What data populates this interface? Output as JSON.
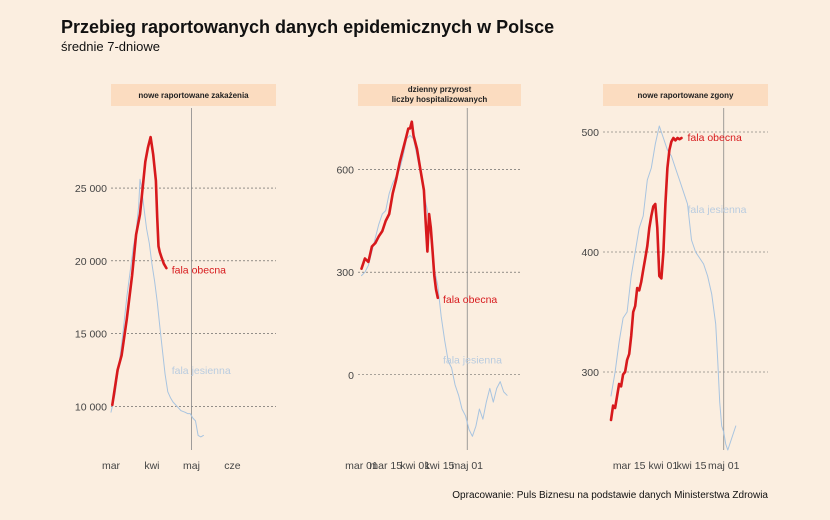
{
  "title": "Przebieg raportowanych danych epidemicznych w Polsce",
  "subtitle": "średnie 7-dniowe",
  "caption": "Opracowanie: Puls Biznesu na podstawie danych Ministerstwa Zdrowia",
  "colors": {
    "background": "#fbeee0",
    "strip": "#fbdcc0",
    "current": "#d7191c",
    "previous": "#a8c4e0",
    "grid": "#555555",
    "vline": "#888888"
  },
  "chart_data": [
    {
      "type": "line",
      "panel_title": [
        "nowe raportowane zakażenia"
      ],
      "xlim": [
        0,
        125
      ],
      "ylim": [
        7000,
        30500
      ],
      "x_ticks": [
        {
          "x": 0,
          "label": "mar"
        },
        {
          "x": 31,
          "label": "kwi"
        },
        {
          "x": 61,
          "label": "maj"
        },
        {
          "x": 92,
          "label": "cze"
        }
      ],
      "y_ticks": [
        {
          "y": 10000,
          "label": "10 000"
        },
        {
          "y": 15000,
          "label": "15 000"
        },
        {
          "y": 20000,
          "label": "20 000"
        },
        {
          "y": 25000,
          "label": "25 000"
        }
      ],
      "vline_x": 61,
      "series": [
        {
          "name": "fala obecna",
          "role": "current",
          "x": [
            1,
            5,
            8,
            12,
            16,
            19,
            22,
            26,
            28,
            30,
            32,
            34,
            35,
            36,
            37,
            38,
            40,
            42
          ],
          "y": [
            10100,
            12500,
            13500,
            16000,
            19000,
            21800,
            23200,
            26800,
            27800,
            28500,
            27300,
            25500,
            23000,
            21000,
            20600,
            20300,
            19800,
            19500
          ],
          "label_x": 46,
          "label_y": 19400
        },
        {
          "name": "fala jesienna",
          "role": "previous",
          "x": [
            0,
            3,
            6,
            9,
            12,
            15,
            17,
            19,
            21,
            22,
            23,
            25,
            27,
            29,
            31,
            33,
            35,
            37,
            39,
            41,
            43,
            45,
            47,
            50,
            53,
            56,
            58,
            60,
            62,
            64,
            66,
            68,
            70
          ],
          "y": [
            9600,
            10800,
            12800,
            15000,
            17500,
            19600,
            21000,
            22000,
            23800,
            25600,
            25100,
            23600,
            22200,
            21200,
            19800,
            18600,
            17200,
            15500,
            13800,
            12200,
            11000,
            10600,
            10300,
            10000,
            9700,
            9600,
            9500,
            9500,
            9200,
            9000,
            8000,
            7900,
            8000
          ],
          "label_x": 46,
          "label_y": 12500
        }
      ]
    },
    {
      "type": "line",
      "panel_title": [
        "dzienny przyrost",
        "liczby hospitalizowanych"
      ],
      "xlim": [
        -2,
        92
      ],
      "ylim": [
        -220,
        780
      ],
      "x_ticks": [
        {
          "x": 0,
          "label": "mar 01"
        },
        {
          "x": 14,
          "label": "mar 15"
        },
        {
          "x": 31,
          "label": "kwi 01"
        },
        {
          "x": 45,
          "label": "kwi 15"
        },
        {
          "x": 61,
          "label": "maj 01"
        }
      ],
      "y_ticks": [
        {
          "y": 0,
          "label": "0"
        },
        {
          "y": 300,
          "label": "300"
        },
        {
          "y": 600,
          "label": "600"
        }
      ],
      "vline_x": 61,
      "series": [
        {
          "name": "fala obecna",
          "role": "current",
          "x": [
            0,
            2,
            4,
            6,
            8,
            10,
            12,
            14,
            16,
            18,
            20,
            22,
            24,
            26,
            27,
            28,
            29,
            30,
            32,
            34,
            36,
            37,
            38,
            39,
            40,
            41,
            42,
            43,
            44
          ],
          "y": [
            310,
            340,
            330,
            375,
            385,
            405,
            420,
            450,
            470,
            530,
            570,
            620,
            660,
            700,
            720,
            720,
            740,
            700,
            660,
            600,
            540,
            450,
            360,
            470,
            430,
            360,
            290,
            250,
            225
          ],
          "label_x": 47,
          "label_y": 222
        },
        {
          "name": "fala jesienna",
          "role": "previous",
          "x": [
            0,
            2,
            4,
            6,
            8,
            10,
            12,
            14,
            16,
            18,
            20,
            22,
            24,
            26,
            28,
            30,
            32,
            34,
            36,
            38,
            40,
            42,
            44,
            46,
            48,
            50,
            52,
            54,
            56,
            58,
            60,
            62,
            64,
            66,
            68,
            70,
            72,
            74,
            76,
            78,
            80,
            82,
            84
          ],
          "y": [
            290,
            300,
            320,
            360,
            400,
            440,
            470,
            480,
            530,
            560,
            580,
            600,
            640,
            690,
            700,
            690,
            640,
            590,
            530,
            480,
            400,
            310,
            260,
            170,
            100,
            40,
            20,
            -30,
            -60,
            -100,
            -120,
            -160,
            -180,
            -150,
            -100,
            -130,
            -80,
            -40,
            -80,
            -40,
            -20,
            -50,
            -60
          ],
          "label_x": 47,
          "label_y": 45
        }
      ]
    },
    {
      "type": "line",
      "panel_title": [
        "nowe raportowane zgony"
      ],
      "xlim": [
        -4,
        78
      ],
      "ylim": [
        235,
        520
      ],
      "x_ticks": [
        {
          "x": 9,
          "label": "mar 15"
        },
        {
          "x": 26,
          "label": "kwi 01"
        },
        {
          "x": 40,
          "label": "kwi 15"
        },
        {
          "x": 56,
          "label": "maj 01"
        }
      ],
      "y_ticks": [
        {
          "y": 300,
          "label": "300"
        },
        {
          "y": 400,
          "label": "400"
        },
        {
          "y": 500,
          "label": "500"
        }
      ],
      "vline_x": 56,
      "series": [
        {
          "name": "fala obecna",
          "role": "current",
          "x": [
            0,
            1,
            2,
            3,
            4,
            5,
            6,
            7,
            8,
            9,
            10,
            11,
            12,
            13,
            14,
            15,
            16,
            17,
            18,
            19,
            20,
            21,
            22,
            23,
            24,
            25,
            26,
            27,
            28,
            29,
            30,
            31,
            32,
            33,
            34,
            35
          ],
          "y": [
            260,
            272,
            270,
            280,
            290,
            288,
            298,
            300,
            310,
            315,
            330,
            350,
            355,
            370,
            368,
            375,
            385,
            395,
            405,
            420,
            430,
            438,
            440,
            420,
            380,
            378,
            400,
            440,
            470,
            485,
            492,
            495,
            493,
            495,
            494,
            495
          ],
          "label_x": 38,
          "label_y": 496
        },
        {
          "name": "fala jesienna",
          "role": "previous",
          "x": [
            0,
            2,
            4,
            6,
            8,
            10,
            12,
            14,
            16,
            18,
            20,
            22,
            24,
            26,
            28,
            30,
            32,
            34,
            36,
            38,
            40,
            42,
            44,
            46,
            48,
            50,
            52,
            53,
            54,
            55,
            56,
            57,
            58,
            60,
            62
          ],
          "y": [
            280,
            300,
            325,
            345,
            350,
            380,
            400,
            420,
            430,
            460,
            470,
            490,
            505,
            495,
            485,
            480,
            470,
            460,
            450,
            440,
            410,
            400,
            395,
            390,
            380,
            365,
            340,
            310,
            275,
            255,
            250,
            240,
            235,
            245,
            255
          ],
          "label_x": 38,
          "label_y": 436
        }
      ]
    }
  ]
}
